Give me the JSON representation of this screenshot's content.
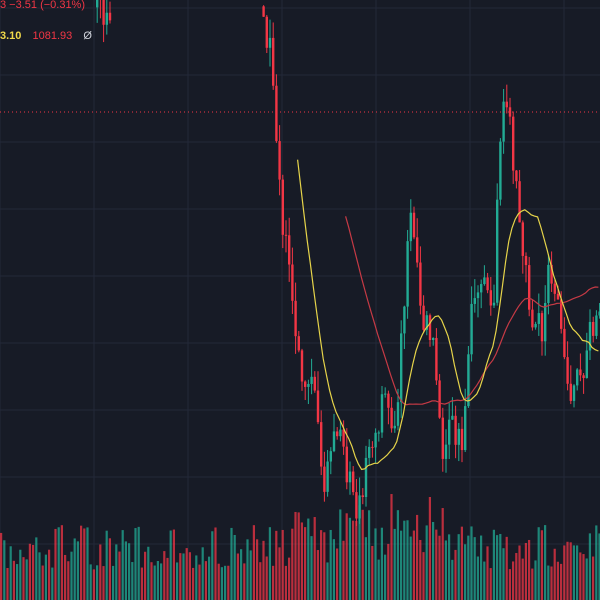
{
  "legend": {
    "change": "3  −3.51 (−0.31%)",
    "ma_short": "3.10",
    "ma_long": "1081.93",
    "visibility_icon": "Ø"
  },
  "colors": {
    "background": "#171b26",
    "grid": "#232838",
    "up": "#22ab94",
    "down": "#f23645",
    "ma_short": "#e6d44a",
    "ma_long": "#c63a45",
    "price_line": "#f23645"
  },
  "chart_data": {
    "type": "candlestick",
    "indicators": [
      "volume",
      "ma_short",
      "ma_long"
    ],
    "price_line_value": 0.8,
    "grid": true
  }
}
